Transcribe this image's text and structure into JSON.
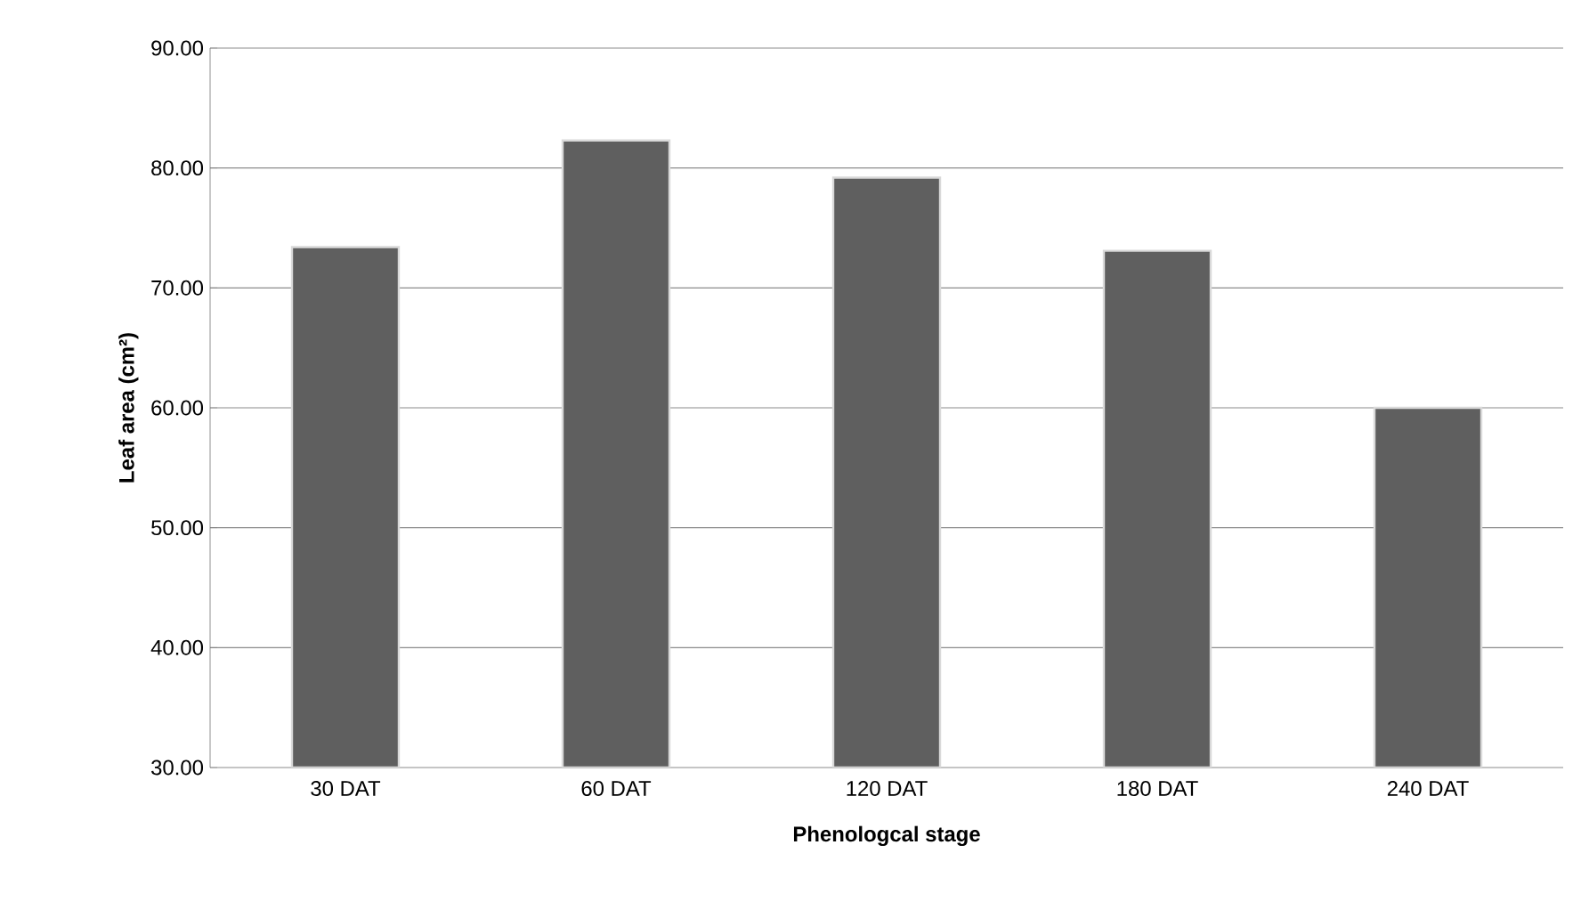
{
  "chart_data": {
    "type": "bar",
    "xlabel": "Phenologcal stage",
    "ylabel": "Leaf area (cm²)",
    "categories": [
      "30 DAT",
      "60 DAT",
      "120 DAT",
      "180 DAT",
      "240 DAT"
    ],
    "values": [
      73.4,
      82.3,
      79.2,
      73.1,
      60.0
    ],
    "color": "#5f5f5f",
    "ylim": [
      30,
      90
    ],
    "yticks": [
      {
        "value": 30,
        "label": "30.00"
      },
      {
        "value": 40,
        "label": "40.00"
      },
      {
        "value": 50,
        "label": "50.00"
      },
      {
        "value": 60,
        "label": "60.00"
      },
      {
        "value": 70,
        "label": "70.00"
      },
      {
        "value": 80,
        "label": "80.00"
      },
      {
        "value": 90,
        "label": "90.00"
      }
    ],
    "grid": "y"
  }
}
